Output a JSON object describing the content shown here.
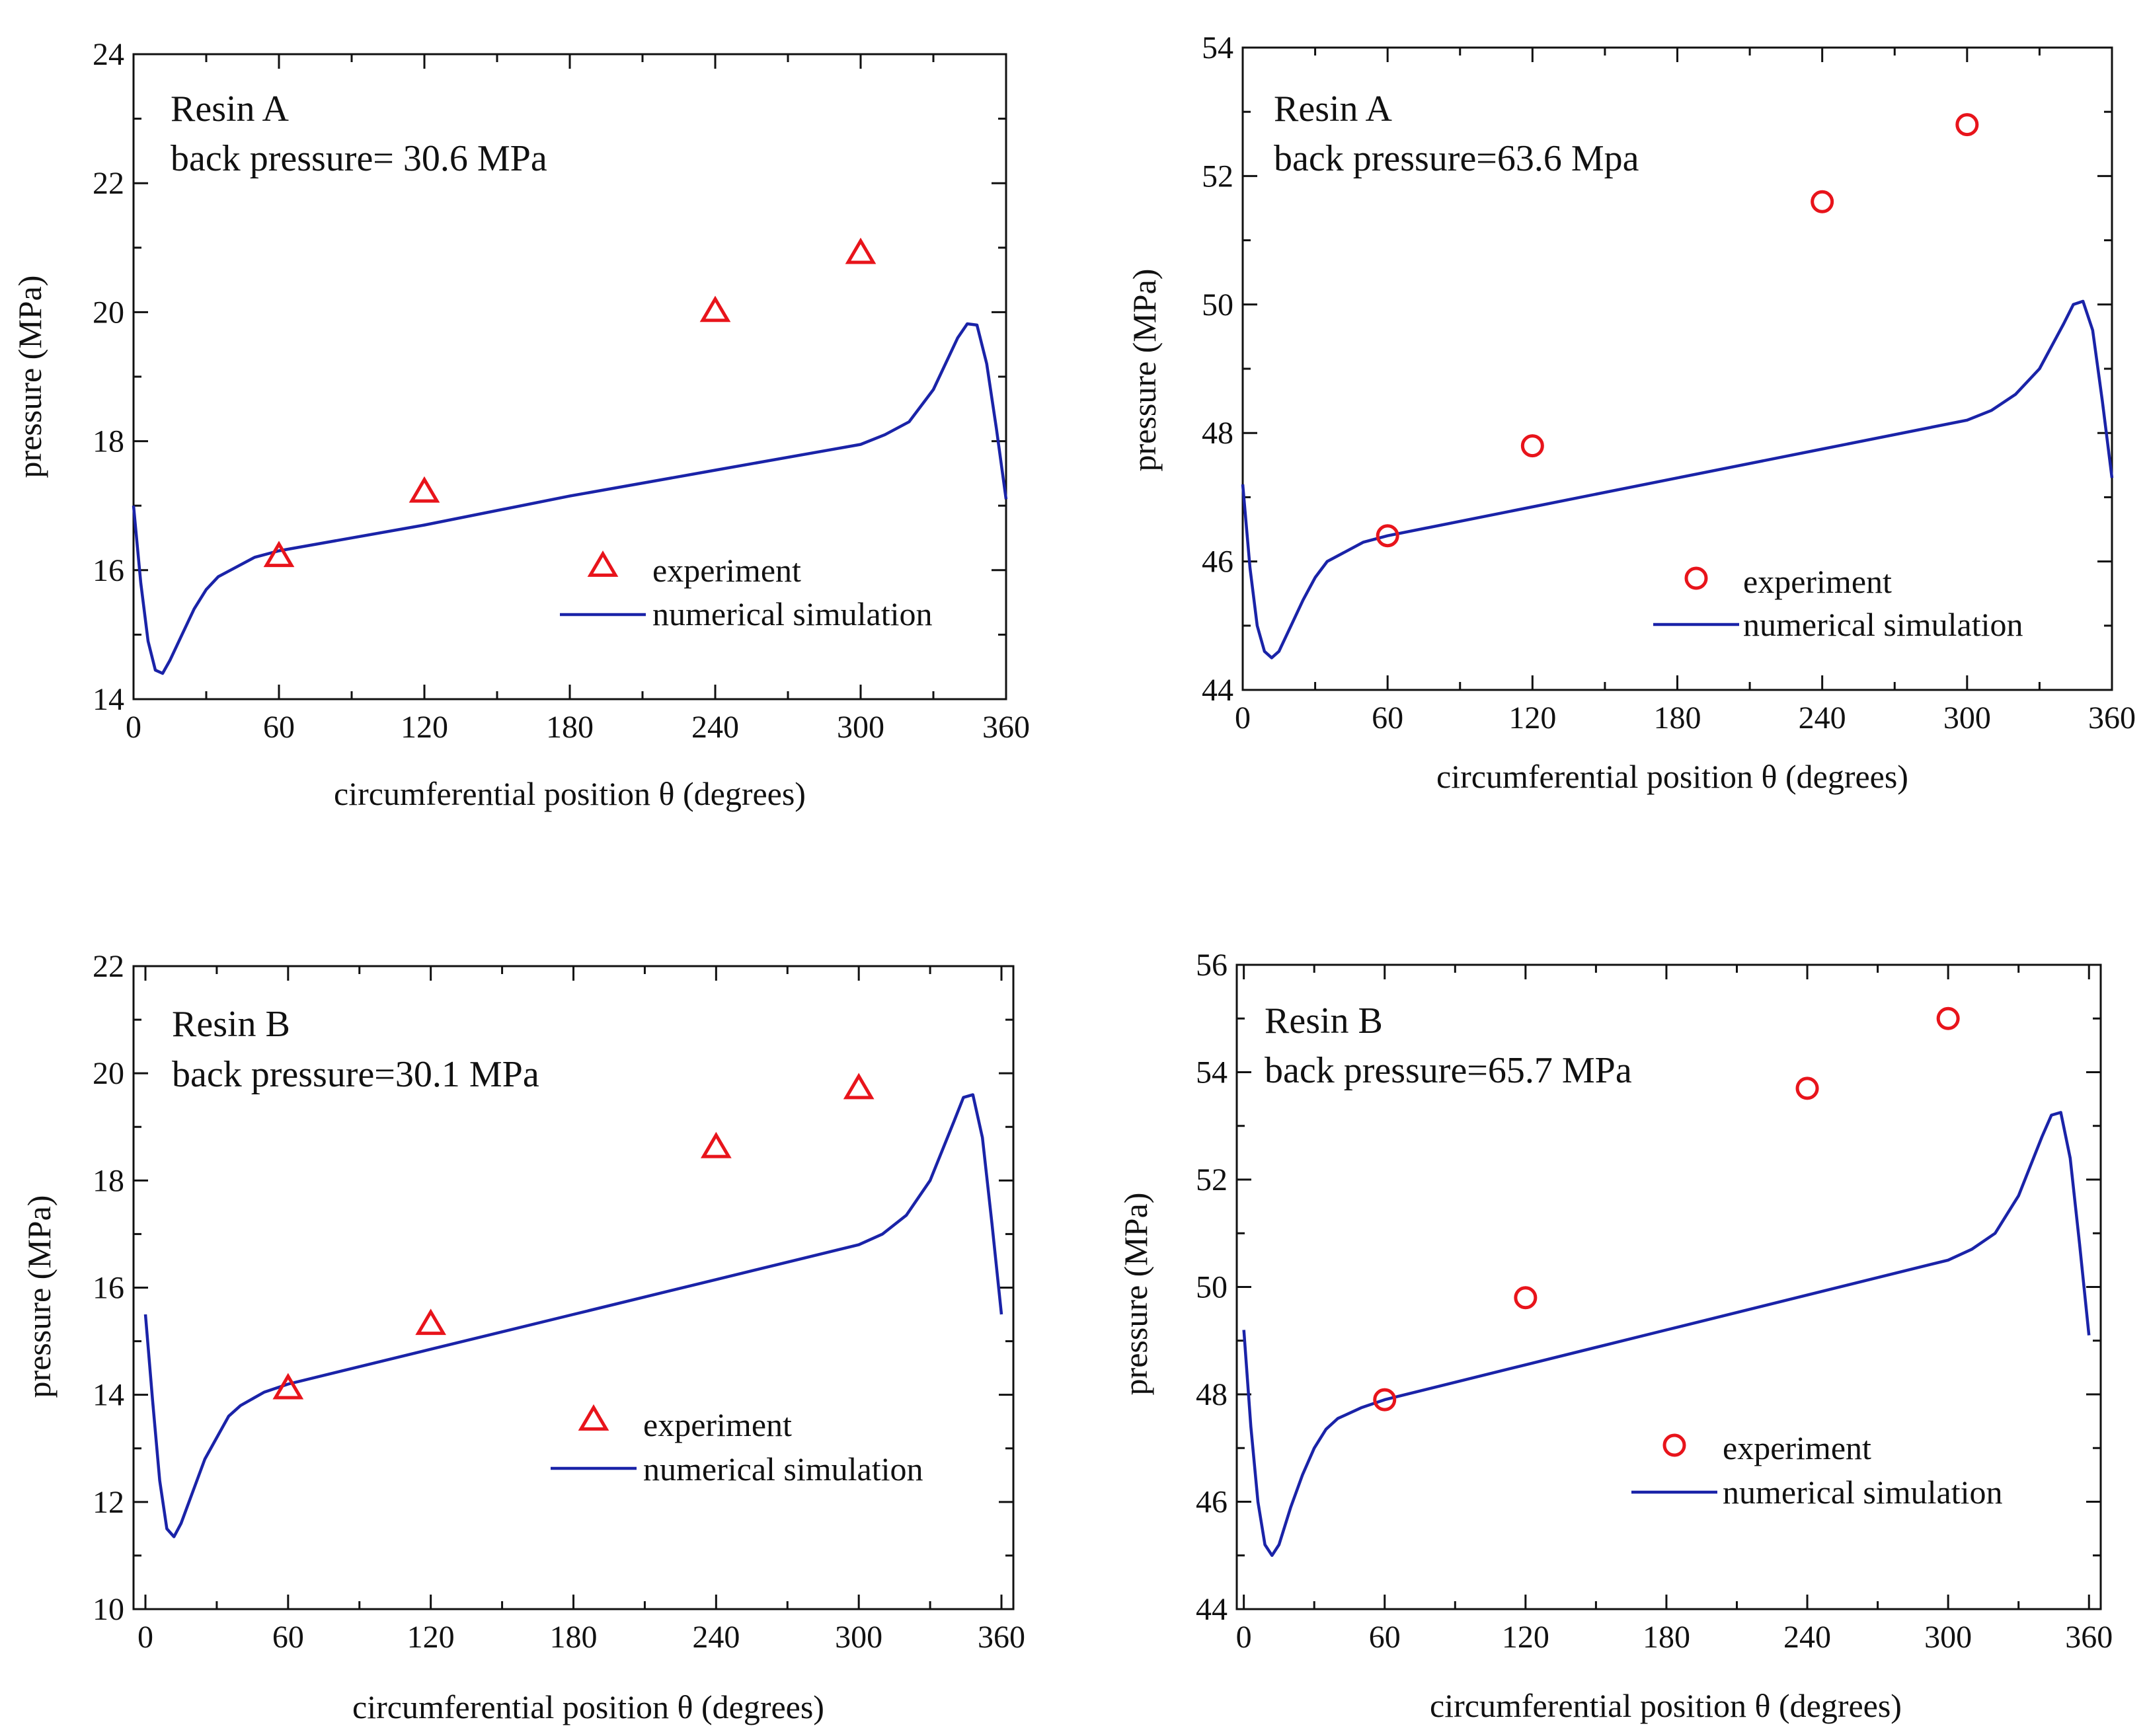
{
  "figure": {
    "colors": {
      "experiment": "#e8141b",
      "simulation": "#1a23a8",
      "axis": "#111111"
    }
  },
  "chart_data": [
    {
      "type": "scatter+line",
      "title": "",
      "annotation": [
        "Resin A",
        "back pressure= 30.6 MPa"
      ],
      "xlabel": "circumferential position θ (degrees)",
      "ylabel": "pressure (MPa)",
      "xlim": [
        0,
        360
      ],
      "ylim": [
        14,
        24
      ],
      "xticks": [
        0,
        60,
        120,
        180,
        240,
        300,
        360
      ],
      "yticks": [
        14,
        16,
        18,
        20,
        22,
        24
      ],
      "legend": [
        "experiment",
        "numerical simulation"
      ],
      "legend_position": "bottom-right",
      "marker": "triangle",
      "series": [
        {
          "name": "experiment",
          "kind": "scatter",
          "x": [
            60,
            120,
            240,
            300
          ],
          "y": [
            16.2,
            17.2,
            20.0,
            20.9
          ]
        },
        {
          "name": "numerical simulation",
          "kind": "line",
          "x": [
            0,
            3,
            6,
            9,
            12,
            15,
            20,
            25,
            30,
            35,
            40,
            50,
            60,
            120,
            180,
            240,
            300,
            310,
            320,
            330,
            340,
            344,
            348,
            352,
            356,
            360
          ],
          "y": [
            17.0,
            15.8,
            14.9,
            14.45,
            14.4,
            14.6,
            15.0,
            15.4,
            15.7,
            15.9,
            16.0,
            16.2,
            16.3,
            16.7,
            17.15,
            17.55,
            17.95,
            18.1,
            18.3,
            18.8,
            19.6,
            19.82,
            19.8,
            19.2,
            18.2,
            17.1
          ]
        }
      ]
    },
    {
      "type": "scatter+line",
      "title": "",
      "annotation": [
        "Resin A",
        "back pressure=63.6 Mpa"
      ],
      "xlabel": "circumferential position θ (degrees)",
      "ylabel": "pressure (MPa)",
      "xlim": [
        0,
        360
      ],
      "ylim": [
        44,
        54
      ],
      "xticks": [
        0,
        60,
        120,
        180,
        240,
        300,
        360
      ],
      "yticks": [
        44,
        46,
        48,
        50,
        52,
        54
      ],
      "legend": [
        "experiment",
        "numerical simulation"
      ],
      "legend_position": "bottom-right",
      "marker": "circle",
      "series": [
        {
          "name": "experiment",
          "kind": "scatter",
          "x": [
            60,
            120,
            240,
            300
          ],
          "y": [
            46.4,
            47.8,
            51.6,
            52.8
          ]
        },
        {
          "name": "numerical simulation",
          "kind": "line",
          "x": [
            0,
            3,
            6,
            9,
            12,
            15,
            20,
            25,
            30,
            35,
            40,
            50,
            60,
            120,
            180,
            240,
            300,
            310,
            320,
            330,
            340,
            344,
            348,
            352,
            356,
            360
          ],
          "y": [
            47.2,
            45.9,
            45.0,
            44.6,
            44.5,
            44.6,
            45.0,
            45.4,
            45.75,
            46.0,
            46.1,
            46.3,
            46.4,
            46.85,
            47.3,
            47.75,
            48.2,
            48.35,
            48.6,
            49.0,
            49.7,
            50.0,
            50.05,
            49.6,
            48.5,
            47.3
          ]
        }
      ]
    },
    {
      "type": "scatter+line",
      "title": "",
      "annotation": [
        "Resin B",
        "back pressure=30.1 MPa"
      ],
      "xlabel": "circumferential position θ (degrees)",
      "ylabel": "pressure (MPa)",
      "xlim": [
        -5,
        365
      ],
      "ylim": [
        10,
        22
      ],
      "xticks": [
        0,
        60,
        120,
        180,
        240,
        300,
        360
      ],
      "yticks": [
        10,
        12,
        14,
        16,
        18,
        20,
        22
      ],
      "legend": [
        "experiment",
        "numerical simulation"
      ],
      "legend_position": "bottom-right",
      "marker": "triangle",
      "series": [
        {
          "name": "experiment",
          "kind": "scatter",
          "x": [
            60,
            120,
            240,
            300
          ],
          "y": [
            14.1,
            15.3,
            18.6,
            19.7
          ]
        },
        {
          "name": "numerical simulation",
          "kind": "line",
          "x": [
            0,
            3,
            6,
            9,
            12,
            15,
            20,
            25,
            30,
            35,
            40,
            50,
            60,
            120,
            180,
            240,
            300,
            310,
            320,
            330,
            340,
            344,
            348,
            352,
            356,
            360
          ],
          "y": [
            15.5,
            13.9,
            12.4,
            11.5,
            11.35,
            11.6,
            12.2,
            12.8,
            13.2,
            13.6,
            13.8,
            14.05,
            14.2,
            14.85,
            15.5,
            16.15,
            16.8,
            17.0,
            17.35,
            18.0,
            19.1,
            19.55,
            19.6,
            18.8,
            17.2,
            15.5
          ]
        }
      ]
    },
    {
      "type": "scatter+line",
      "title": "",
      "annotation": [
        "Resin B",
        "back pressure=65.7 MPa"
      ],
      "xlabel": "circumferential position θ (degrees)",
      "ylabel": "pressure (MPa)",
      "xlim": [
        -3,
        365
      ],
      "ylim": [
        44,
        56
      ],
      "xticks": [
        0,
        60,
        120,
        180,
        240,
        300,
        360
      ],
      "yticks": [
        44,
        46,
        48,
        50,
        52,
        54,
        56
      ],
      "legend": [
        "experiment",
        "numerical simulation"
      ],
      "legend_position": "bottom-right",
      "marker": "circle",
      "series": [
        {
          "name": "experiment",
          "kind": "scatter",
          "x": [
            60,
            120,
            240,
            300
          ],
          "y": [
            47.9,
            49.8,
            53.7,
            55.0
          ]
        },
        {
          "name": "numerical simulation",
          "kind": "line",
          "x": [
            0,
            3,
            6,
            9,
            12,
            15,
            20,
            25,
            30,
            35,
            40,
            50,
            60,
            120,
            180,
            240,
            300,
            310,
            320,
            330,
            340,
            344,
            348,
            352,
            356,
            360
          ],
          "y": [
            49.2,
            47.4,
            46.0,
            45.2,
            45.0,
            45.2,
            45.9,
            46.5,
            47.0,
            47.35,
            47.55,
            47.75,
            47.9,
            48.55,
            49.2,
            49.85,
            50.5,
            50.7,
            51.0,
            51.7,
            52.8,
            53.2,
            53.25,
            52.4,
            50.8,
            49.1
          ]
        }
      ]
    }
  ]
}
